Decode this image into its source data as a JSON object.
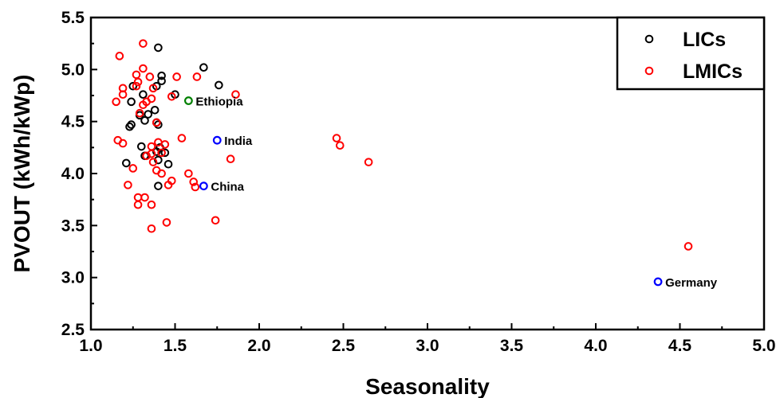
{
  "chart_data": {
    "type": "scatter",
    "title": "",
    "xlabel": "Seasonality",
    "ylabel": "PVOUT (kWh/kWp)",
    "xlim": [
      1.0,
      5.0
    ],
    "ylim": [
      2.5,
      5.5
    ],
    "x_ticks": [
      "1.0",
      "1.5",
      "2.0",
      "2.5",
      "3.0",
      "3.5",
      "4.0",
      "4.5",
      "5.0"
    ],
    "y_ticks": [
      "2.5",
      "3.0",
      "3.5",
      "4.0",
      "4.5",
      "5.0",
      "5.5"
    ],
    "grid": false,
    "legend_position": "top-right",
    "series": [
      {
        "name": "LICs",
        "color": "#000000",
        "points": [
          [
            1.4,
            5.21
          ],
          [
            1.67,
            5.02
          ],
          [
            1.42,
            4.94
          ],
          [
            1.25,
            4.84
          ],
          [
            1.39,
            4.84
          ],
          [
            1.42,
            4.89
          ],
          [
            1.5,
            4.76
          ],
          [
            1.76,
            4.85
          ],
          [
            1.31,
            4.76
          ],
          [
            1.24,
            4.69
          ],
          [
            1.34,
            4.57
          ],
          [
            1.29,
            4.56
          ],
          [
            1.38,
            4.61
          ],
          [
            1.39,
            4.49
          ],
          [
            1.32,
            4.51
          ],
          [
            1.4,
            4.47
          ],
          [
            1.23,
            4.45
          ],
          [
            1.24,
            4.47
          ],
          [
            1.3,
            4.26
          ],
          [
            1.41,
            4.25
          ],
          [
            1.32,
            4.17
          ],
          [
            1.44,
            4.2
          ],
          [
            1.39,
            4.21
          ],
          [
            1.21,
            4.1
          ],
          [
            1.4,
            4.13
          ],
          [
            1.46,
            4.09
          ],
          [
            1.4,
            3.88
          ]
        ]
      },
      {
        "name": "LMICs",
        "color": "#ff0000",
        "points": [
          [
            1.31,
            5.25
          ],
          [
            1.17,
            5.13
          ],
          [
            1.31,
            5.01
          ],
          [
            1.27,
            4.95
          ],
          [
            1.35,
            4.93
          ],
          [
            1.51,
            4.93
          ],
          [
            1.63,
            4.93
          ],
          [
            1.19,
            4.82
          ],
          [
            1.27,
            4.84
          ],
          [
            1.28,
            4.88
          ],
          [
            1.37,
            4.82
          ],
          [
            1.15,
            4.69
          ],
          [
            1.19,
            4.76
          ],
          [
            1.33,
            4.69
          ],
          [
            1.31,
            4.66
          ],
          [
            1.36,
            4.72
          ],
          [
            1.48,
            4.74
          ],
          [
            1.86,
            4.76
          ],
          [
            1.29,
            4.58
          ],
          [
            1.39,
            4.49
          ],
          [
            1.16,
            4.32
          ],
          [
            1.19,
            4.29
          ],
          [
            1.36,
            4.26
          ],
          [
            1.4,
            4.3
          ],
          [
            1.44,
            4.28
          ],
          [
            1.54,
            4.34
          ],
          [
            1.33,
            4.17
          ],
          [
            1.36,
            4.19
          ],
          [
            1.42,
            4.2
          ],
          [
            1.37,
            4.11
          ],
          [
            1.83,
            4.14
          ],
          [
            1.25,
            4.05
          ],
          [
            1.39,
            4.03
          ],
          [
            1.42,
            4.0
          ],
          [
            1.58,
            4.0
          ],
          [
            1.22,
            3.89
          ],
          [
            1.46,
            3.89
          ],
          [
            1.48,
            3.93
          ],
          [
            1.61,
            3.92
          ],
          [
            1.62,
            3.87
          ],
          [
            1.28,
            3.77
          ],
          [
            1.32,
            3.77
          ],
          [
            1.28,
            3.7
          ],
          [
            1.36,
            3.7
          ],
          [
            1.74,
            3.55
          ],
          [
            1.45,
            3.53
          ],
          [
            1.36,
            3.47
          ],
          [
            2.46,
            4.34
          ],
          [
            2.48,
            4.27
          ],
          [
            2.65,
            4.11
          ],
          [
            4.55,
            3.3
          ]
        ]
      }
    ],
    "annotations": [
      {
        "label": "Ethiopia",
        "x": 1.58,
        "y": 4.7,
        "color": "#008000"
      },
      {
        "label": "India",
        "x": 1.75,
        "y": 4.32,
        "color": "#0000ff"
      },
      {
        "label": "China",
        "x": 1.67,
        "y": 3.88,
        "color": "#0000ff"
      },
      {
        "label": "Germany",
        "x": 4.37,
        "y": 2.96,
        "color": "#0000ff"
      }
    ]
  }
}
